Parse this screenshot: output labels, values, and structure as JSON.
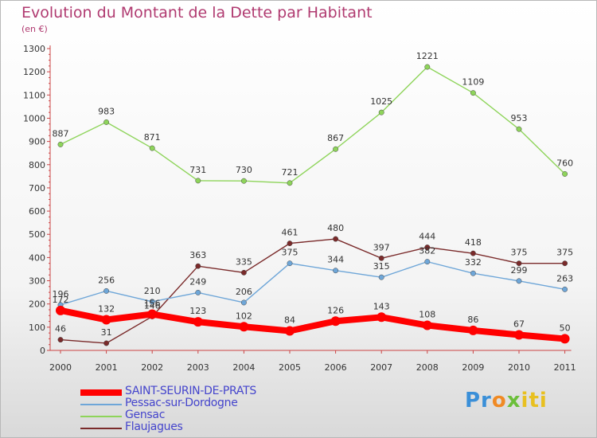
{
  "chart_data": {
    "type": "line",
    "title": "Evolution du Montant de la Dette par Habitant",
    "subtitle": "(en €)",
    "x": [
      "2000",
      "2001",
      "2002",
      "2003",
      "2004",
      "2005",
      "2006",
      "2007",
      "2008",
      "2009",
      "2010",
      "2011"
    ],
    "ylim": [
      0,
      1300
    ],
    "yticks": [
      0,
      100,
      200,
      300,
      400,
      500,
      600,
      700,
      800,
      900,
      1000,
      1100,
      1200,
      1300
    ],
    "grid": false,
    "legend_position": "bottom-left",
    "series": [
      {
        "name": "Gensac",
        "color": "#8ed45a",
        "values": [
          887,
          983,
          871,
          731,
          730,
          721,
          867,
          1025,
          1221,
          1109,
          953,
          760
        ]
      },
      {
        "name": "Flaujagues",
        "color": "#7a2a2a",
        "values": [
          46,
          31,
          146,
          363,
          335,
          461,
          480,
          397,
          444,
          418,
          375,
          375
        ]
      },
      {
        "name": "Pessac-sur-Dordogne",
        "color": "#6ea6d8",
        "values": [
          196,
          256,
          210,
          249,
          206,
          375,
          344,
          315,
          382,
          332,
          299,
          263
        ]
      },
      {
        "name": "SAINT-SEURIN-DE-PRATS",
        "color": "#ff0000",
        "values": [
          172,
          132,
          156,
          123,
          102,
          84,
          126,
          143,
          108,
          86,
          67,
          50
        ]
      }
    ],
    "legend": [
      {
        "name": "SAINT-SEURIN-DE-PRATS",
        "color": "#ff0000"
      },
      {
        "name": "Pessac-sur-Dordogne",
        "color": "#6ea6d8"
      },
      {
        "name": "Gensac",
        "color": "#8ed45a"
      },
      {
        "name": "Flaujagues",
        "color": "#7a2a2a"
      }
    ]
  },
  "logo": {
    "parts": [
      "Pr",
      "o",
      "x",
      "iti"
    ]
  }
}
